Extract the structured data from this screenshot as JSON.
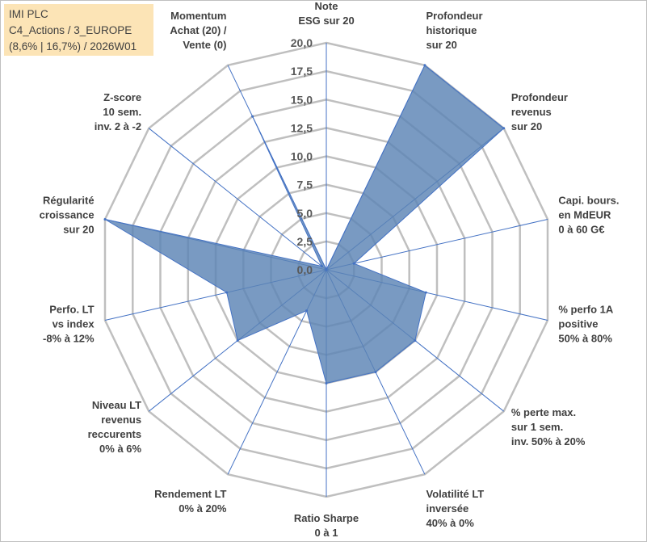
{
  "info": {
    "line1": "IMI PLC",
    "line2": "C4_Actions / 3_EUROPE",
    "line3": "(8,6% | 16,7%) / 2026W01"
  },
  "colors": {
    "fill": "#5b84b5",
    "stroke": "#4472c4",
    "grid": "#bfbfbf",
    "spoke": "#4472c4",
    "info_bg": "#fce4b6"
  },
  "chart_data": {
    "type": "radar",
    "title": "",
    "rmin": 0,
    "rmax": 20,
    "ticks": [
      "0,0",
      "2,5",
      "5,0",
      "7,5",
      "10,0",
      "12,5",
      "15,0",
      "17,5",
      "20,0"
    ],
    "categories": [
      [
        "Note",
        "ESG sur 20"
      ],
      [
        "Profondeur",
        "historique",
        "sur 20"
      ],
      [
        "Profondeur",
        "revenus",
        "sur 20"
      ],
      [
        "Capi. bours.",
        "en MdEUR",
        "0 à 60 G€"
      ],
      [
        "% perfo 1A",
        "positive",
        "50% à 80%"
      ],
      [
        "% perte max.",
        "sur 1 sem.",
        "inv. 50% à 20%"
      ],
      [
        "Volatilité LT",
        "inversée",
        "40% à 0%"
      ],
      [
        "Ratio Sharpe",
        "0 à 1"
      ],
      [
        "Rendement LT",
        "0% à 20%"
      ],
      [
        "Niveau LT",
        "revenus",
        "reccurents",
        "0% à 6%"
      ],
      [
        "Perfo. LT",
        "vs index",
        "-8% à 12%"
      ],
      [
        "Régularité",
        "croissance",
        "sur 20"
      ],
      [
        "Z-score",
        "10 sem.",
        "inv. 2 à -2"
      ],
      [
        "Momentum",
        "Achat (20) /",
        "Vente (0)"
      ]
    ],
    "series": [
      {
        "name": "IMI PLC",
        "values": [
          0,
          20,
          20,
          2.5,
          9,
          10,
          10,
          10,
          4,
          10,
          9,
          20,
          0.5,
          15
        ]
      }
    ]
  }
}
